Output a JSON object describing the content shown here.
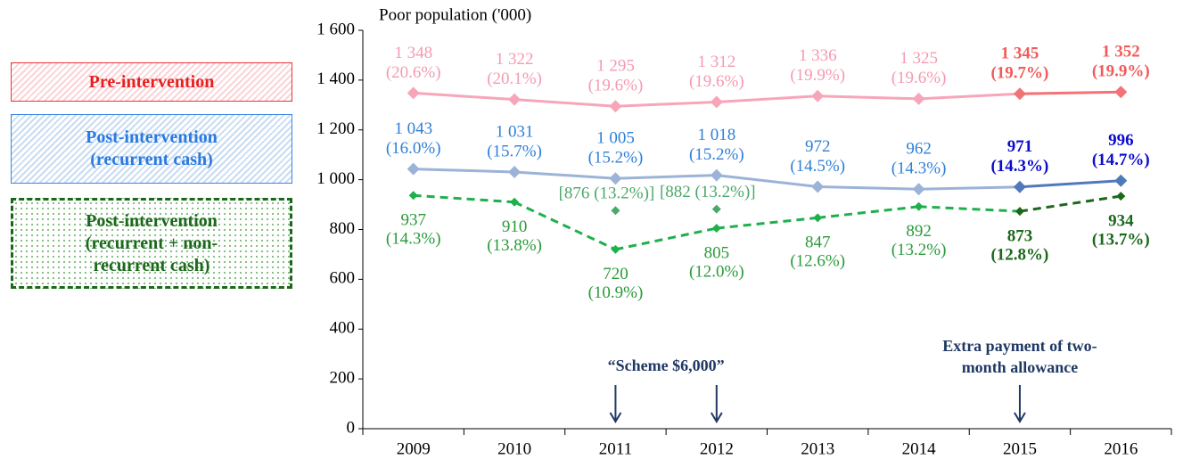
{
  "chart_data": {
    "type": "line",
    "title": "Poor population ('000)",
    "categories": [
      "2009",
      "2010",
      "2011",
      "2012",
      "2013",
      "2014",
      "2015",
      "2016"
    ],
    "ylim": [
      0,
      1600
    ],
    "yticks": [
      0,
      200,
      400,
      600,
      800,
      {
        "value": 1000,
        "label": "1 000"
      },
      {
        "value": 1200,
        "label": "1 200"
      },
      {
        "value": 1400,
        "label": "1 400"
      },
      {
        "value": 1600,
        "label": "1 600"
      }
    ],
    "grid": false,
    "highlighted": [
      false,
      false,
      false,
      false,
      false,
      false,
      true,
      true
    ],
    "series": [
      {
        "name": "Pre-intervention",
        "color": "#f7a6ba",
        "highlight_color": "#f27275",
        "label_color": "#f49ab0",
        "highlight_label_color": "#f25a5a",
        "label_position": "above",
        "dashed": false,
        "values": [
          1348,
          1322,
          1295,
          1312,
          1336,
          1325,
          1345,
          1352
        ],
        "value_labels": [
          "1 348",
          "1 322",
          "1 295",
          "1 312",
          "1 336",
          "1 325",
          "1 345",
          "1 352"
        ],
        "rate_labels": [
          "(20.6%)",
          "(20.1%)",
          "(19.6%)",
          "(19.6%)",
          "(19.9%)",
          "(19.6%)",
          "(19.7%)",
          "(19.9%)"
        ]
      },
      {
        "name": "Post-intervention (recurrent cash)",
        "color": "#9cb3d8",
        "highlight_color": "#4f7aba",
        "label_color": "#2e80d8",
        "highlight_label_color": "#0a0ad0",
        "label_position": "above",
        "dashed": false,
        "values": [
          1043,
          1031,
          1005,
          1018,
          972,
          962,
          971,
          996
        ],
        "value_labels": [
          "1 043",
          "1 031",
          "1 005",
          "1 018",
          "972",
          "962",
          "971",
          "996"
        ],
        "rate_labels": [
          "(16.0%)",
          "(15.7%)",
          "(15.2%)",
          "(15.2%)",
          "(14.5%)",
          "(14.3%)",
          "(14.3%)",
          "(14.7%)"
        ]
      },
      {
        "name": "Post-intervention (recurrent + non-recurrent cash)",
        "color": "#1fb04c",
        "highlight_color": "#1b681b",
        "label_color": "#2a9a3a",
        "highlight_label_color": "#1b681b",
        "label_position": "below",
        "dashed": true,
        "values": [
          937,
          910,
          720,
          805,
          847,
          892,
          873,
          934
        ],
        "value_labels": [
          "937",
          "910",
          "720",
          "805",
          "847",
          "892",
          "873",
          "934"
        ],
        "rate_labels": [
          "(14.3%)",
          "(13.8%)",
          "(10.9%)",
          "(12.0%)",
          "(12.6%)",
          "(13.2%)",
          "(12.8%)",
          "(13.7%)"
        ],
        "alt_color": "#4aa86a",
        "alt_values": [
          null,
          null,
          876,
          882,
          null,
          null,
          null,
          null
        ],
        "alt_labels": [
          null,
          null,
          "[876 (13.2%)]",
          "[882 (13.2%)]",
          null,
          null,
          null,
          null
        ]
      }
    ],
    "annotations": [
      {
        "text": "“Scheme $6,000”",
        "at": [
          "2011",
          "2012"
        ]
      },
      {
        "text": "Extra payment of two-month allowance",
        "at": [
          "2015"
        ]
      }
    ]
  }
}
